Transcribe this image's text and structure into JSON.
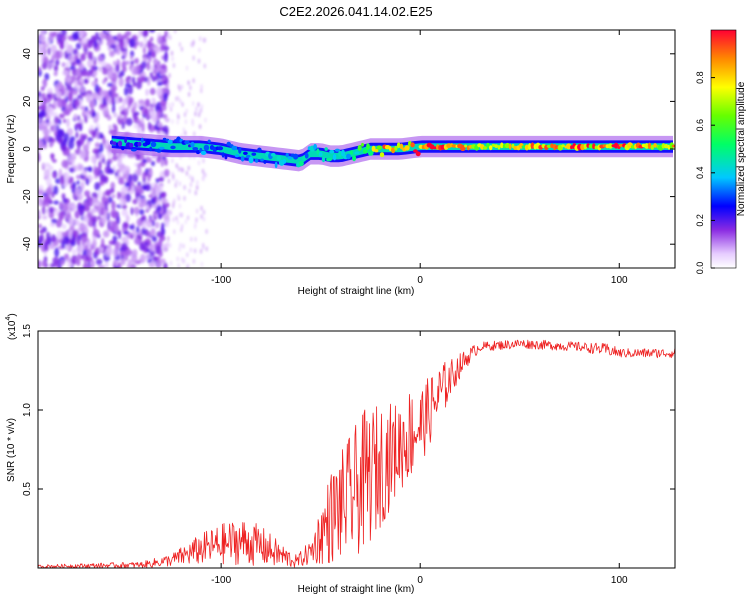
{
  "title": "C2E2.2026.041.14.02.E25",
  "colors": {
    "trace": "#ee2222",
    "axis": "#000000"
  },
  "chart_data": [
    {
      "type": "heatmap",
      "name": "spectrogram",
      "xlabel": "Height of straight line (km)",
      "ylabel": "Frequency (Hz)",
      "xlim": [
        -192,
        128
      ],
      "ylim": [
        -50,
        50
      ],
      "xticks": [
        -100,
        0,
        100
      ],
      "yticks": [
        -40,
        -20,
        0,
        20,
        40
      ],
      "ridge": {
        "x": [
          -155,
          -140,
          -125,
          -110,
          -100,
          -90,
          -80,
          -70,
          -60,
          -55,
          -50,
          -45,
          -40,
          -35,
          -30,
          -25,
          -20,
          -10,
          0,
          20,
          40,
          60,
          80,
          100,
          128
        ],
        "y": [
          3,
          2,
          1,
          1,
          0,
          -2,
          -3,
          -4,
          -5,
          -2,
          -2,
          -3,
          -3,
          -2,
          -1,
          0,
          0,
          0,
          1,
          1,
          1,
          1,
          1,
          1,
          1
        ],
        "amplitude": [
          0.25,
          0.3,
          0.32,
          0.33,
          0.35,
          0.35,
          0.37,
          0.4,
          0.42,
          0.45,
          0.45,
          0.45,
          0.45,
          0.5,
          0.55,
          0.7,
          0.85,
          0.9,
          0.95,
          0.85,
          0.7,
          0.85,
          0.9,
          0.95,
          0.8
        ]
      },
      "colorbar": {
        "label": "Normalized spectral amplitude",
        "range": [
          0,
          1
        ],
        "ticks": [
          0.0,
          0.2,
          0.4,
          0.6,
          0.8
        ],
        "tick_labels": [
          "0.0",
          "0.2",
          "0.4",
          "0.6",
          "0.8"
        ]
      }
    },
    {
      "type": "line",
      "name": "snr",
      "xlabel": "Height of straight line (km)",
      "ylabel": "SNR (10 * v/v)",
      "y_scale_label": "(x10",
      "y_scale_exp": "4",
      "xlim": [
        -192,
        128
      ],
      "ylim": [
        0,
        1.5
      ],
      "xticks": [
        -100,
        0,
        100
      ],
      "yticks": [
        0.5,
        1.0,
        1.5
      ],
      "ytick_labels": [
        "0.5",
        "1.0",
        "1.5"
      ],
      "envelope": {
        "x": [
          -192,
          -140,
          -125,
          -110,
          -100,
          -90,
          -80,
          -70,
          -62,
          -55,
          -45,
          -35,
          -28,
          -20,
          -12,
          -5,
          0,
          5,
          10,
          15,
          20,
          25,
          30,
          50,
          80,
          95,
          100,
          128
        ],
        "mean": [
          0.01,
          0.02,
          0.05,
          0.12,
          0.15,
          0.17,
          0.14,
          0.08,
          0.04,
          0.1,
          0.32,
          0.45,
          0.55,
          0.65,
          0.75,
          0.85,
          0.9,
          1.0,
          1.1,
          1.2,
          1.28,
          1.35,
          1.4,
          1.42,
          1.4,
          1.38,
          1.36,
          1.36
        ],
        "amplitude": [
          0.01,
          0.02,
          0.04,
          0.1,
          0.13,
          0.15,
          0.13,
          0.08,
          0.04,
          0.08,
          0.3,
          0.4,
          0.45,
          0.4,
          0.3,
          0.3,
          0.25,
          0.22,
          0.2,
          0.12,
          0.08,
          0.05,
          0.03,
          0.03,
          0.03,
          0.04,
          0.03,
          0.03
        ]
      }
    }
  ]
}
